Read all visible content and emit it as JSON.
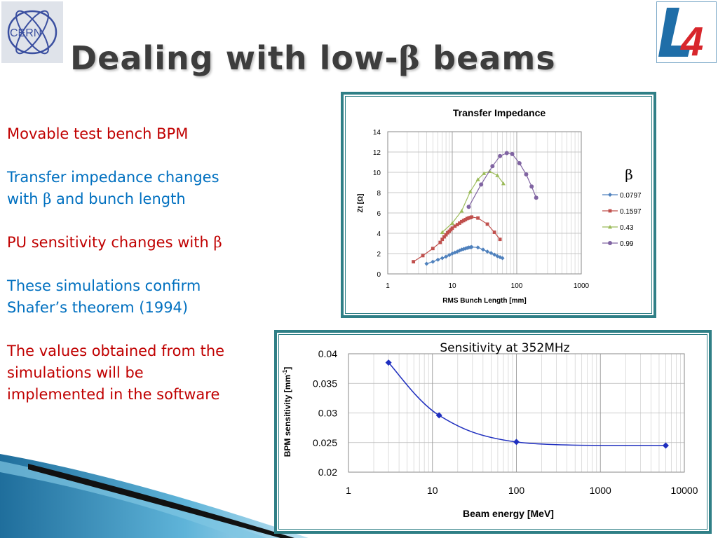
{
  "slide": {
    "title_prefix": "Dealing with low-",
    "title_symbol": "β",
    "title_suffix": " beams",
    "logos": {
      "left": "CERN",
      "right": "4"
    },
    "bullets": [
      {
        "color": "#c00000",
        "text": "Movable test bench BPM"
      },
      {
        "color": "#0070c0",
        "text": "Transfer impedance changes",
        "line2a": "with ",
        "sym": "β",
        "line2b": " and bunch length"
      },
      {
        "color": "#c00000",
        "text": "PU sensitivity changes with ",
        "sym": "β"
      },
      {
        "color": "#0070c0",
        "text": "These simulations confirm",
        "line2": "Shafer’s theorem (1994)"
      },
      {
        "color": "#c00000",
        "text": "The values obtained from the",
        "line2": "simulations will be",
        "line3": "implemented in the software"
      }
    ]
  },
  "chart_data": [
    {
      "type": "scatter",
      "title": "Transfer Impedance",
      "xlabel": "RMS Bunch Length [mm]",
      "ylabel": "Zt [Ω]",
      "xscale": "log",
      "xlim": [
        1,
        1000
      ],
      "ylim": [
        0,
        14
      ],
      "xticks": [
        1,
        10,
        100,
        1000
      ],
      "yticks": [
        0,
        2,
        4,
        6,
        8,
        10,
        12,
        14
      ],
      "grid": "log-x minor and major, y major",
      "legend_title": "β",
      "legend_position": "right",
      "series": [
        {
          "name": "0.0797",
          "color": "#4f81bd",
          "marker": "diamond",
          "x": [
            4,
            5,
            6,
            7,
            8,
            9,
            10,
            11,
            12,
            13,
            14,
            15,
            16,
            17,
            18,
            19,
            20,
            25,
            30,
            35,
            40,
            45,
            50,
            55,
            60
          ],
          "y": [
            1.0,
            1.2,
            1.4,
            1.55,
            1.7,
            1.85,
            2.0,
            2.1,
            2.2,
            2.3,
            2.4,
            2.45,
            2.5,
            2.55,
            2.6,
            2.62,
            2.65,
            2.6,
            2.4,
            2.2,
            2.05,
            1.9,
            1.75,
            1.65,
            1.55
          ]
        },
        {
          "name": "0.1597",
          "color": "#c0504d",
          "marker": "square",
          "x": [
            2.5,
            3.5,
            5,
            6.5,
            7,
            7.5,
            8,
            8.5,
            9,
            9.5,
            10,
            11,
            12,
            13,
            14,
            15,
            16,
            17,
            18,
            19,
            20,
            25,
            35,
            45,
            55
          ],
          "y": [
            1.2,
            1.8,
            2.5,
            3.1,
            3.4,
            3.65,
            3.85,
            4.05,
            4.2,
            4.35,
            4.5,
            4.7,
            4.85,
            5.0,
            5.15,
            5.25,
            5.35,
            5.45,
            5.5,
            5.55,
            5.6,
            5.5,
            4.9,
            4.1,
            3.4
          ]
        },
        {
          "name": "0.43",
          "color": "#9bbb59",
          "marker": "triangle",
          "x": [
            7,
            10,
            14,
            19,
            25,
            31,
            38,
            50,
            62
          ],
          "y": [
            4.1,
            5.0,
            6.2,
            8.1,
            9.3,
            9.9,
            10.1,
            9.7,
            8.9
          ]
        },
        {
          "name": "0.99",
          "color": "#8064a2",
          "marker": "circle",
          "x": [
            18,
            28,
            42,
            55,
            70,
            85,
            110,
            140,
            170,
            200
          ],
          "y": [
            6.6,
            8.8,
            10.6,
            11.6,
            11.9,
            11.8,
            10.9,
            9.8,
            8.6,
            7.5
          ]
        }
      ]
    },
    {
      "type": "line",
      "title": "Sensitivity at 352MHz",
      "xlabel": "Beam energy [MeV]",
      "ylabel_main": "BPM sensitivity [mm",
      "ylabel_sup": "-1",
      "ylabel_end": "]",
      "xscale": "log",
      "xlim": [
        1,
        10000
      ],
      "ylim": [
        0.02,
        0.04
      ],
      "xticks": [
        1,
        10,
        100,
        1000,
        10000
      ],
      "yticks": [
        0.02,
        0.025,
        0.03,
        0.035,
        0.04
      ],
      "ytick_labels": [
        "0.02",
        "0.025",
        "0.03",
        "0.035",
        "0.04"
      ],
      "grid": "log-x minor and major, y major",
      "series": [
        {
          "color": "#1f2fbf",
          "marker": "diamond",
          "x": [
            3,
            12,
            100,
            6000
          ],
          "y": [
            0.0385,
            0.0296,
            0.0251,
            0.0245
          ]
        }
      ]
    }
  ]
}
